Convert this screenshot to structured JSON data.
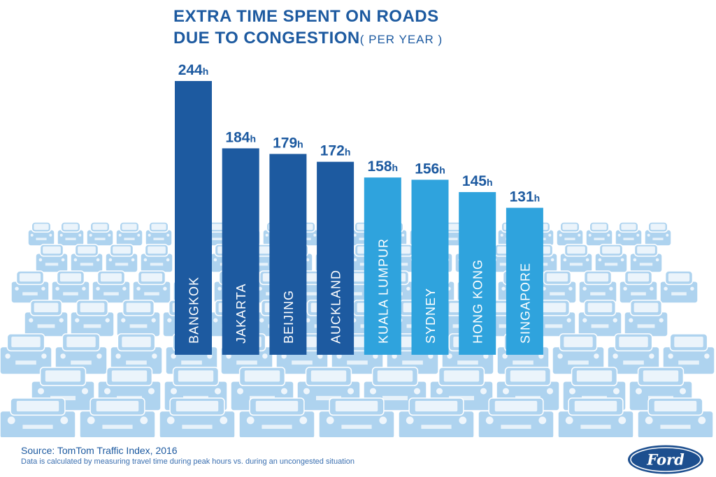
{
  "chart_data": {
    "type": "bar",
    "title_line1": "EXTRA TIME SPENT ON ROADS",
    "title_line2": "DUE TO CONGESTION",
    "title_suffix": "( PER YEAR )",
    "unit": "h",
    "categories": [
      "BANGKOK",
      "JAKARTA",
      "BEIJING",
      "AUCKLAND",
      "KUALA LUMPUR",
      "SYDNEY",
      "HONG KONG",
      "SINGAPORE"
    ],
    "values": [
      244,
      184,
      179,
      172,
      158,
      156,
      145,
      131
    ],
    "colors": [
      "#1d5aa0",
      "#1d5aa0",
      "#1d5aa0",
      "#1d5aa0",
      "#2fa3dd",
      "#2fa3dd",
      "#2fa3dd",
      "#2fa3dd"
    ],
    "ylim": [
      0,
      244
    ],
    "grid": false,
    "background_illustration": "traffic-jam-cars"
  },
  "footer": {
    "source": "Source: TomTom Traffic Index, 2016",
    "note": "Data is calculated by measuring travel time during peak hours vs. during an uncongested situation",
    "logo_text": "Ford"
  },
  "colors": {
    "dark_blue": "#1d5aa0",
    "light_blue": "#2fa3dd",
    "car_blue": "#aed3ef"
  }
}
